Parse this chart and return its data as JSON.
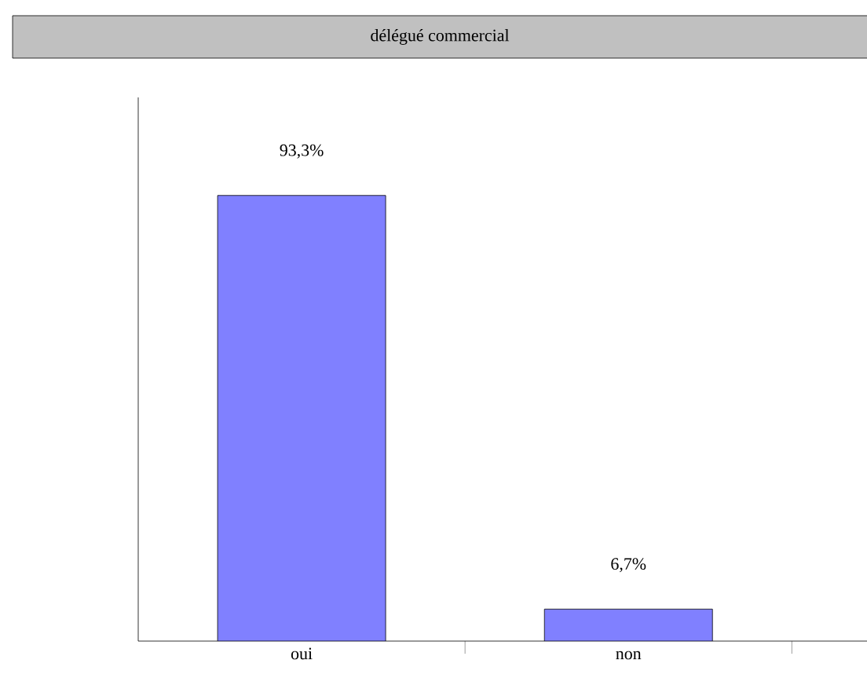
{
  "chart_data": {
    "type": "bar",
    "title": "délégué commercial",
    "categories": [
      "oui",
      "non"
    ],
    "values": [
      93.3,
      6.7
    ],
    "value_labels": [
      "93,3%",
      "6,7%"
    ],
    "color": "#8080ff"
  }
}
